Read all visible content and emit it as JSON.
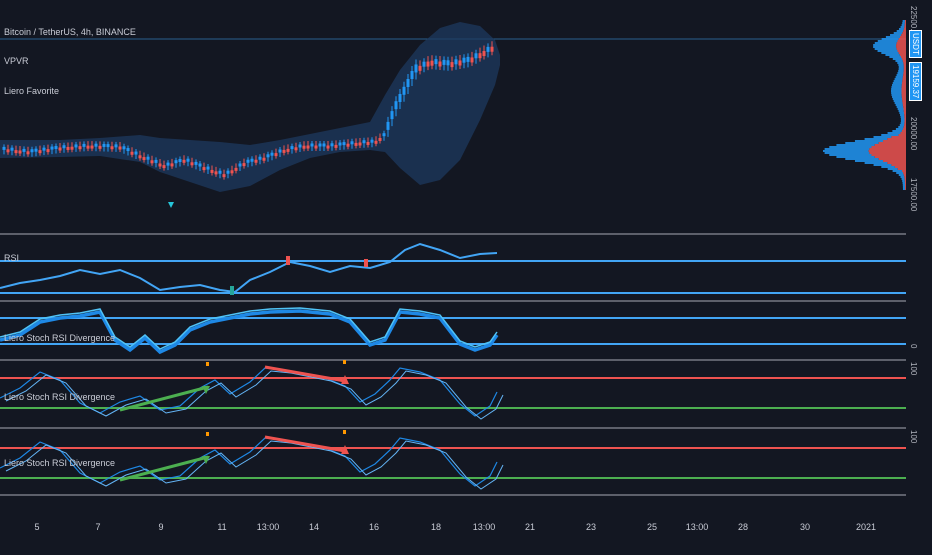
{
  "header": {
    "symbol_line": "Bitcoin / TetherUS, 4h, BINANCE",
    "indicator_1": "VPVR",
    "indicator_2": "Liero Favorite"
  },
  "panes": {
    "pane2_label": "RSI",
    "pane3_label": "Liero Stoch RSI Divergence",
    "pane4_label": "Liero Stoch RSI Divergence",
    "pane5_label": "Liero Stoch RSI Divergence",
    "pane3_scale": "0",
    "pane4_scale": "100",
    "pane5_scale": "100"
  },
  "price_axis": {
    "labels": [
      "22500.00",
      "20000.00",
      "17500.00"
    ],
    "symbol_tag": "USDT",
    "last_price": "19159.37"
  },
  "time_axis": {
    "labels": [
      "5",
      "7",
      "9",
      "11",
      "13:00",
      "14",
      "16",
      "18",
      "13:00",
      "21",
      "23",
      "25",
      "13:00",
      "28",
      "30",
      "2021"
    ]
  },
  "colors": {
    "background": "#131722",
    "bull_candle": "#2196f3",
    "bear_candle": "#ef5350",
    "rsi_line": "#42a5f5",
    "upper_level": "#ef5350",
    "lower_level": "#4caf50",
    "pane_divider": "#5d606b"
  }
}
